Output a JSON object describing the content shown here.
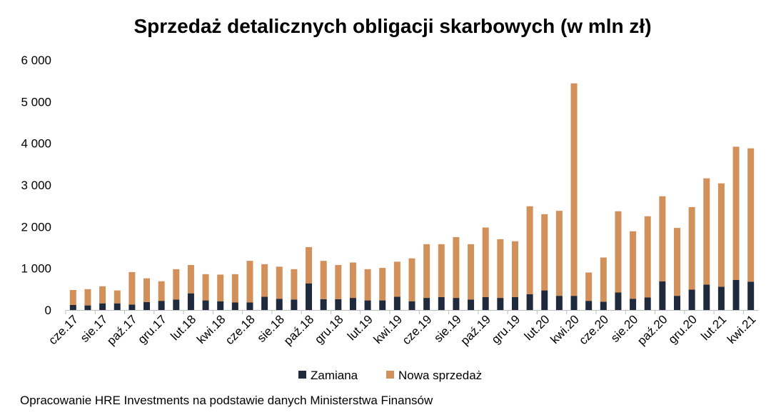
{
  "chart_data": {
    "type": "bar",
    "stacked": true,
    "title": "Sprzedaż detalicznych obligacji skarbowych (w mln zł)",
    "xlabel": "",
    "ylabel": "",
    "ylim": [
      0,
      6000
    ],
    "y_ticks": [
      {
        "value": 0,
        "label": "0"
      },
      {
        "value": 1000,
        "label": "1 000"
      },
      {
        "value": 2000,
        "label": "2 000"
      },
      {
        "value": 3000,
        "label": "3 000"
      },
      {
        "value": 4000,
        "label": "4 000"
      },
      {
        "value": 5000,
        "label": "5 000"
      },
      {
        "value": 6000,
        "label": "6 000"
      }
    ],
    "grid": false,
    "legend_position": "bottom",
    "categories": [
      "cze.17",
      "lip.17",
      "sie.17",
      "wrz.17",
      "paź.17",
      "lis.17",
      "gru.17",
      "sty.18",
      "lut.18",
      "mar.18",
      "kwi.18",
      "maj.18",
      "cze.18",
      "lip.18",
      "sie.18",
      "wrz.18",
      "paź.18",
      "lis.18",
      "gru.18",
      "sty.19",
      "lut.19",
      "mar.19",
      "kwi.19",
      "maj.19",
      "cze.19",
      "lip.19",
      "sie.19",
      "wrz.19",
      "paź.19",
      "lis.19",
      "gru.19",
      "sty.20",
      "lut.20",
      "mar.20",
      "kwi.20",
      "maj.20",
      "cze.20",
      "lip.20",
      "sie.20",
      "wrz.20",
      "paź.20",
      "lis.20",
      "gru.20",
      "sty.21",
      "lut.21",
      "mar.21",
      "kwi.21"
    ],
    "x_tick_labels": [
      "cze.17",
      "sie.17",
      "paź.17",
      "gru.17",
      "lut.18",
      "kwi.18",
      "cze.18",
      "sie.18",
      "paź.18",
      "gru.18",
      "lut.19",
      "kwi.19",
      "cze.19",
      "sie.19",
      "paź.19",
      "gru.19",
      "lut.20",
      "kwi.20",
      "cze.20",
      "sie.20",
      "paź.20",
      "gru.20",
      "lut.21",
      "kwi.21"
    ],
    "series": [
      {
        "name": "Zamiana",
        "color": "#1f2a3c",
        "values": [
          120,
          110,
          160,
          160,
          130,
          190,
          220,
          250,
          400,
          230,
          210,
          180,
          180,
          320,
          270,
          250,
          640,
          260,
          260,
          290,
          230,
          230,
          320,
          210,
          290,
          310,
          290,
          250,
          310,
          290,
          310,
          380,
          470,
          340,
          340,
          220,
          200,
          420,
          270,
          300,
          690,
          340,
          490,
          610,
          560,
          720,
          680
        ]
      },
      {
        "name": "Nowa sprzedaż",
        "color": "#d2905a",
        "values": [
          360,
          390,
          410,
          310,
          780,
          570,
          470,
          730,
          680,
          630,
          640,
          680,
          1000,
          780,
          770,
          730,
          870,
          920,
          820,
          850,
          750,
          780,
          840,
          1030,
          1290,
          1270,
          1460,
          1330,
          1670,
          1410,
          1340,
          2110,
          1830,
          2040,
          5100,
          680,
          1060,
          1950,
          1620,
          1950,
          2040,
          1630,
          1980,
          2550,
          2480,
          3200,
          3200
        ]
      }
    ],
    "source": "Opracowanie HRE Investments na podstawie danych Ministerstwa Finansów"
  }
}
